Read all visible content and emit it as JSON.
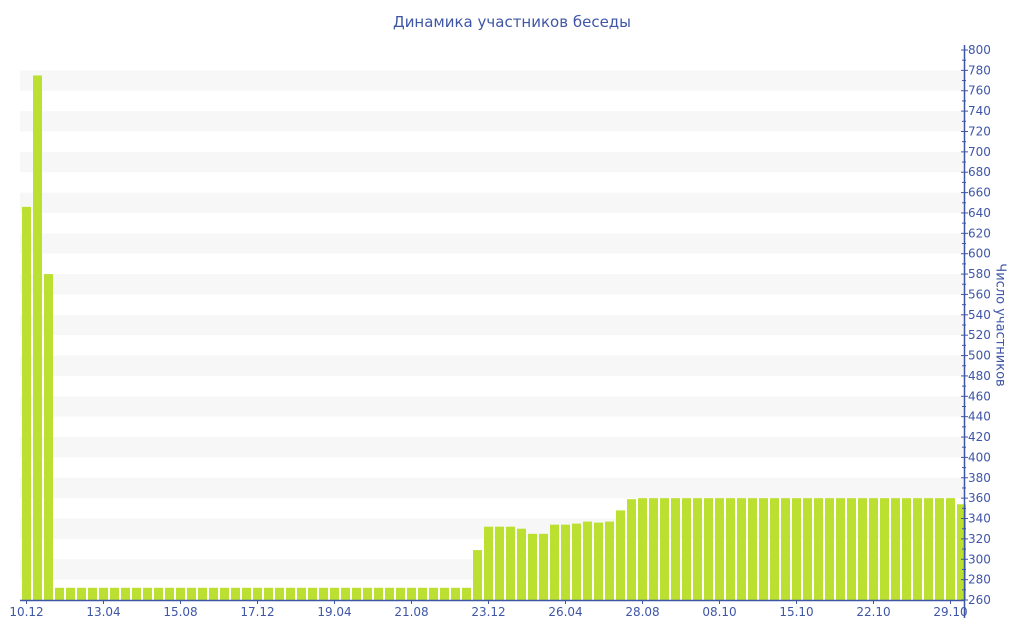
{
  "chart_data": {
    "type": "bar",
    "title": "Динамика участников беседы",
    "xlabel": "",
    "ylabel": "Число участников",
    "ylim": [
      260,
      800
    ],
    "y_tick_step": 20,
    "y_axis_side": "right",
    "grid": "alternating horizontal bands",
    "bar_color": "#bce032",
    "band_color": "#f7f7f7",
    "axis_color": "#3f56a6",
    "x_tick_labels": [
      "10.12",
      "13.04",
      "15.08",
      "17.12",
      "19.04",
      "21.08",
      "23.12",
      "26.04",
      "28.08",
      "08.10",
      "15.10",
      "22.10",
      "29.10"
    ],
    "x_tick_every": 7,
    "values": [
      646,
      775,
      580,
      272,
      272,
      272,
      272,
      272,
      272,
      272,
      272,
      272,
      272,
      272,
      272,
      272,
      272,
      272,
      272,
      272,
      272,
      272,
      272,
      272,
      272,
      272,
      272,
      272,
      272,
      272,
      272,
      272,
      272,
      272,
      272,
      272,
      272,
      272,
      272,
      272,
      272,
      309,
      332,
      332,
      332,
      330,
      325,
      325,
      334,
      334,
      335,
      337,
      336,
      337,
      348,
      359,
      360,
      360,
      360,
      360,
      360,
      360,
      360,
      360,
      360,
      360,
      360,
      360,
      360,
      360,
      360,
      360,
      360,
      360,
      360,
      360,
      360,
      360,
      360,
      360,
      360,
      360,
      360,
      360,
      360,
      354
    ]
  }
}
